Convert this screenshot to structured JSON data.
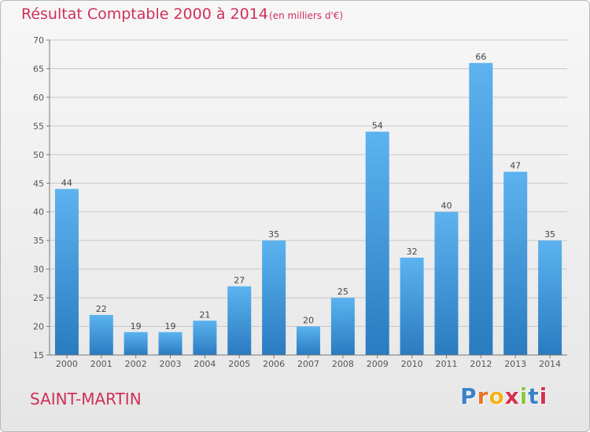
{
  "chart_data": {
    "type": "bar",
    "title": "Résultat Comptable 2000 à 2014",
    "subtitle": "(en milliers d'€)",
    "categories": [
      "2000",
      "2001",
      "2002",
      "2003",
      "2004",
      "2005",
      "2006",
      "2007",
      "2008",
      "2009",
      "2010",
      "2011",
      "2012",
      "2013",
      "2014"
    ],
    "values": [
      44,
      22,
      19,
      19,
      21,
      27,
      35,
      20,
      25,
      54,
      32,
      40,
      66,
      47,
      35
    ],
    "yticks": [
      15,
      20,
      25,
      30,
      35,
      40,
      45,
      50,
      55,
      60,
      65,
      70
    ],
    "ylim": [
      15,
      70
    ],
    "grid": "horizontal",
    "bar_color": "#3f96d6"
  },
  "footer": {
    "place": "SAINT-MARTIN",
    "logo_letters": [
      "P",
      "r",
      "o",
      "x",
      "i",
      "t",
      "i"
    ],
    "logo_colors": [
      "#3b82c6",
      "#e8742a",
      "#f2b21b",
      "#d4304f",
      "#8ac640",
      "#3b82c6",
      "#d4304f"
    ]
  }
}
